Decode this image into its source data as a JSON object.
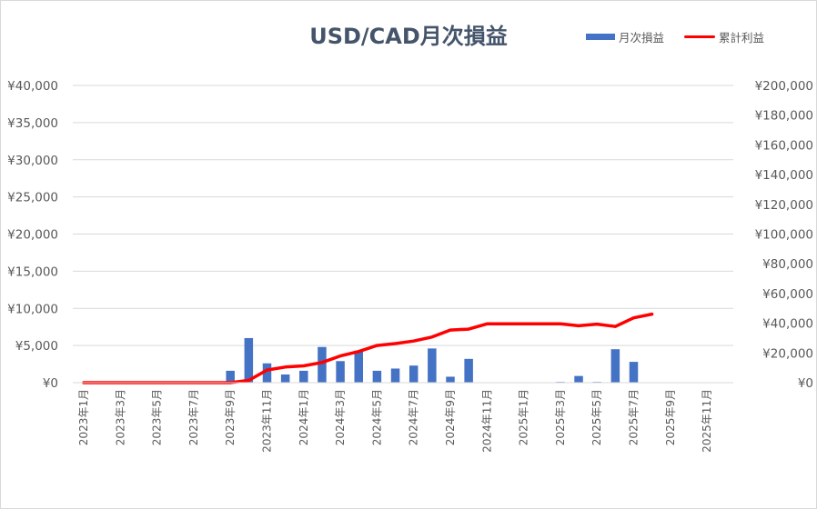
{
  "chart_data": {
    "type": "bar",
    "title": "USD/CAD月次損益",
    "legend": {
      "position": "top-right"
    },
    "categories": [
      "2023年1月",
      "2023年2月",
      "2023年3月",
      "2023年4月",
      "2023年5月",
      "2023年6月",
      "2023年7月",
      "2023年8月",
      "2023年9月",
      "2023年10月",
      "2023年11月",
      "2023年12月",
      "2024年1月",
      "2024年2月",
      "2024年3月",
      "2024年4月",
      "2024年5月",
      "2024年6月",
      "2024年7月",
      "2024年8月",
      "2024年9月",
      "2024年10月",
      "2024年11月",
      "2024年12月",
      "2025年1月",
      "2025年2月",
      "2025年3月",
      "2025年4月",
      "2025年5月",
      "2025年6月",
      "2025年7月",
      "2025年8月",
      "2025年9月",
      "2025年10月",
      "2025年11月",
      "2025年12月"
    ],
    "x_tick_labels": [
      "2023年1月",
      "2023年3月",
      "2023年5月",
      "2023年7月",
      "2023年9月",
      "2023年11月",
      "2024年1月",
      "2024年3月",
      "2024年5月",
      "2024年7月",
      "2024年9月",
      "2024年11月",
      "2025年1月",
      "2025年3月",
      "2025年5月",
      "2025年7月",
      "2025年9月",
      "2025年11月"
    ],
    "y_left": {
      "range": [
        0,
        40000
      ],
      "ticks": [
        "¥0",
        "¥5,000",
        "¥10,000",
        "¥15,000",
        "¥20,000",
        "¥25,000",
        "¥30,000",
        "¥35,000",
        "¥40,000"
      ]
    },
    "y_right": {
      "range": [
        0,
        200000
      ],
      "ticks": [
        "¥0",
        "¥20,000",
        "¥40,000",
        "¥60,000",
        "¥80,000",
        "¥100,000",
        "¥120,000",
        "¥140,000",
        "¥160,000",
        "¥180,000",
        "¥200,000"
      ]
    },
    "grid": true,
    "series": [
      {
        "name": "月次損益",
        "type": "bar",
        "axis": "left",
        "color": "#4472c4",
        "values": [
          0,
          0,
          0,
          0,
          0,
          0,
          0,
          0,
          1600,
          6000,
          2600,
          1100,
          1600,
          4800,
          2900,
          4300,
          1600,
          1900,
          2300,
          4600,
          800,
          3200,
          0,
          0,
          0,
          0,
          100,
          900,
          100,
          4500,
          2800,
          null,
          null,
          null,
          null,
          null
        ]
      },
      {
        "name": "累計利益",
        "type": "line",
        "axis": "right",
        "color": "#ff0000",
        "values": [
          0,
          0,
          0,
          0,
          0,
          0,
          0,
          0,
          0,
          1500,
          8500,
          10500,
          11300,
          13600,
          18000,
          21000,
          25000,
          26300,
          28000,
          30700,
          35400,
          36000,
          39600,
          39600,
          39600,
          39600,
          39600,
          38300,
          39400,
          37800,
          43600,
          46100,
          null,
          null,
          null,
          null
        ]
      }
    ]
  }
}
